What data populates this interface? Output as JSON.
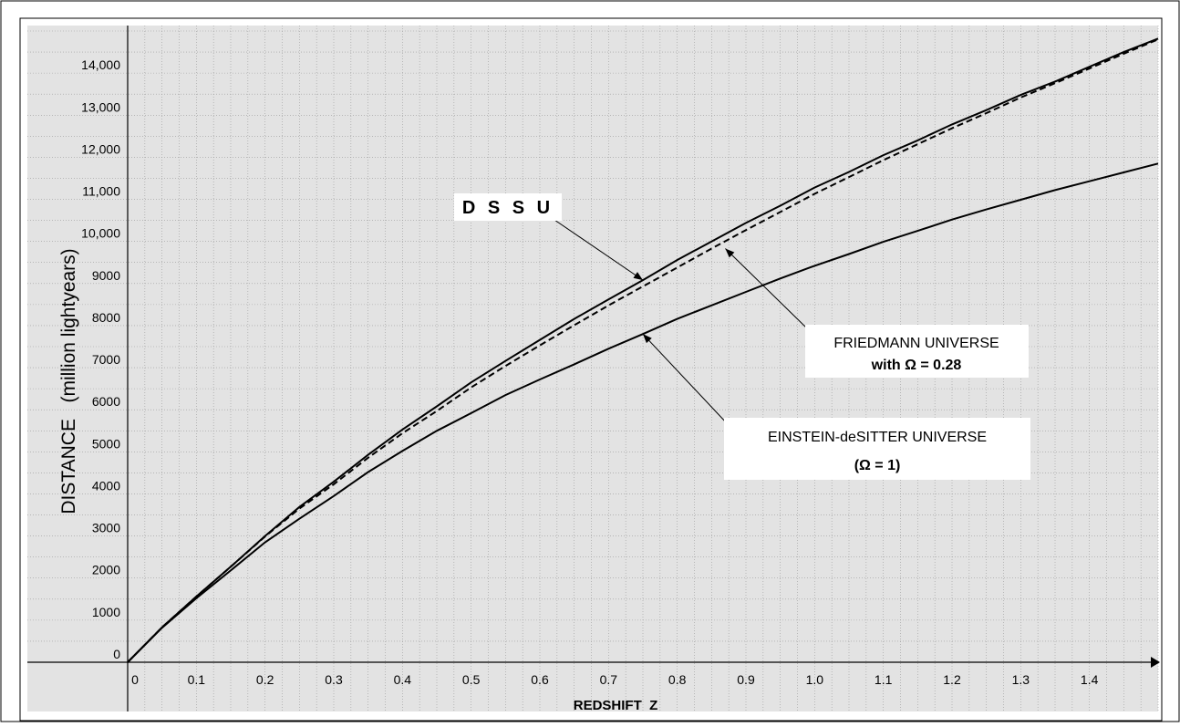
{
  "chart_data": {
    "type": "line",
    "title": "",
    "xlabel": "REDSHIFT  Z",
    "ylabel": "DISTANCE   (million lightyears)",
    "xlim": [
      0,
      1.5
    ],
    "ylim": [
      0,
      15000
    ],
    "grid": true,
    "y_ticks": [
      {
        "value": 0,
        "label": "0"
      },
      {
        "value": 1000,
        "label": "1000"
      },
      {
        "value": 2000,
        "label": "2000"
      },
      {
        "value": 3000,
        "label": "3000"
      },
      {
        "value": 4000,
        "label": "4000"
      },
      {
        "value": 5000,
        "label": "5000"
      },
      {
        "value": 6000,
        "label": "6000"
      },
      {
        "value": 7000,
        "label": "7000"
      },
      {
        "value": 8000,
        "label": "8000"
      },
      {
        "value": 9000,
        "label": "9000"
      },
      {
        "value": 10000,
        "label": "10,000"
      },
      {
        "value": 11000,
        "label": "11,000"
      },
      {
        "value": 12000,
        "label": "12,000"
      },
      {
        "value": 13000,
        "label": "13,000"
      },
      {
        "value": 14000,
        "label": "14,000"
      }
    ],
    "x_ticks": [
      {
        "value": 0,
        "label": "0"
      },
      {
        "value": 0.1,
        "label": "0.1"
      },
      {
        "value": 0.2,
        "label": "0.2"
      },
      {
        "value": 0.3,
        "label": "0.3"
      },
      {
        "value": 0.4,
        "label": "0.4"
      },
      {
        "value": 0.5,
        "label": "0.5"
      },
      {
        "value": 0.6,
        "label": "0.6"
      },
      {
        "value": 0.7,
        "label": "0.7"
      },
      {
        "value": 0.8,
        "label": "0.8"
      },
      {
        "value": 0.9,
        "label": "0.9"
      },
      {
        "value": 1.0,
        "label": "1.0"
      },
      {
        "value": 1.1,
        "label": "1.1"
      },
      {
        "value": 1.2,
        "label": "1.2"
      },
      {
        "value": 1.3,
        "label": "1.3"
      },
      {
        "value": 1.4,
        "label": "1.4"
      }
    ],
    "series": [
      {
        "key": "dssu",
        "style": "solid",
        "color": "#000000",
        "x": [
          0,
          0.05,
          0.1,
          0.15,
          0.2,
          0.25,
          0.3,
          0.35,
          0.4,
          0.45,
          0.5,
          0.55,
          0.6,
          0.65,
          0.7,
          0.75,
          0.8,
          0.85,
          0.9,
          0.95,
          1.0,
          1.05,
          1.1,
          1.15,
          1.2,
          1.25,
          1.3,
          1.35,
          1.4,
          1.45,
          1.5
        ],
        "y": [
          0,
          830,
          1560,
          2270,
          3000,
          3690,
          4290,
          4930,
          5530,
          6080,
          6650,
          7160,
          7660,
          8160,
          8620,
          9080,
          9560,
          10000,
          10440,
          10850,
          11280,
          11650,
          12050,
          12400,
          12780,
          13120,
          13480,
          13800,
          14150,
          14500,
          14820
        ]
      },
      {
        "key": "friedmann",
        "style": "dashed",
        "color": "#000000",
        "x": [
          0,
          0.05,
          0.1,
          0.15,
          0.2,
          0.25,
          0.3,
          0.35,
          0.4,
          0.45,
          0.5,
          0.55,
          0.6,
          0.65,
          0.7,
          0.75,
          0.8,
          0.85,
          0.9,
          0.95,
          1.0,
          1.05,
          1.1,
          1.15,
          1.2,
          1.25,
          1.3,
          1.35,
          1.4,
          1.45,
          1.5
        ],
        "y": [
          0,
          830,
          1560,
          2270,
          2990,
          3650,
          4230,
          4860,
          5440,
          5970,
          6530,
          7040,
          7530,
          8010,
          8480,
          8930,
          9380,
          9830,
          10270,
          10700,
          11130,
          11530,
          11930,
          12310,
          12690,
          13050,
          13420,
          13760,
          14110,
          14460,
          14800
        ]
      },
      {
        "key": "einstein",
        "style": "solid",
        "color": "#000000",
        "x": [
          0,
          0.05,
          0.1,
          0.15,
          0.2,
          0.25,
          0.3,
          0.35,
          0.4,
          0.45,
          0.5,
          0.55,
          0.6,
          0.65,
          0.7,
          0.75,
          0.8,
          0.85,
          0.9,
          0.95,
          1.0,
          1.05,
          1.1,
          1.15,
          1.2,
          1.25,
          1.3,
          1.35,
          1.4,
          1.45,
          1.5
        ],
        "y": [
          0,
          820,
          1520,
          2180,
          2850,
          3410,
          3950,
          4520,
          5020,
          5500,
          5920,
          6350,
          6720,
          7080,
          7450,
          7800,
          8160,
          8480,
          8800,
          9120,
          9420,
          9700,
          9990,
          10250,
          10520,
          10760,
          10990,
          11220,
          11430,
          11640,
          11850
        ]
      }
    ],
    "annotations": [
      {
        "key": "dssu",
        "lines": [
          "D S S U"
        ],
        "points_to": {
          "x": 0.75,
          "y": 9080
        }
      },
      {
        "key": "friedmann",
        "lines": [
          "FRIEDMANN UNIVERSE",
          "with  Ω = 0.28"
        ],
        "points_to": {
          "x": 0.87,
          "y": 9830
        }
      },
      {
        "key": "einstein",
        "lines": [
          "EINSTEIN-deSITTER UNIVERSE",
          "(Ω = 1)"
        ],
        "points_to": {
          "x": 0.75,
          "y": 7800
        }
      }
    ]
  }
}
